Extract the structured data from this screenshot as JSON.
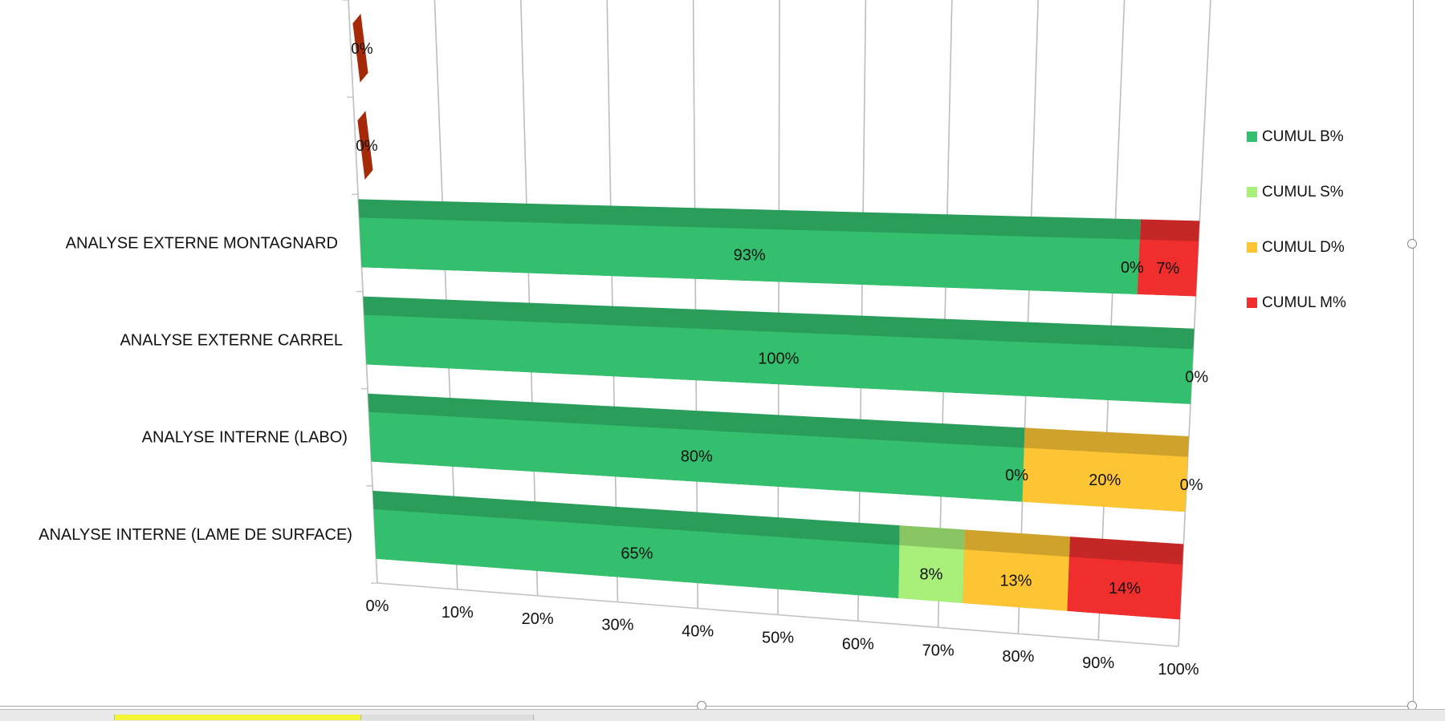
{
  "chart_data": {
    "type": "bar",
    "orientation": "horizontal",
    "stacked": "100%",
    "style": "3d",
    "categories": [
      "",
      "",
      "ANALYSE EXTERNE  MONTAGNARD",
      "ANALYSE EXTERNE   CARREL",
      "ANALYSE INTERNE (LABO)",
      "ANALYSE INTERNE (LAME DE SURFACE)"
    ],
    "series": [
      {
        "name": "CUMUL B%",
        "color": "#33bf6e",
        "values": [
          0,
          0,
          93,
          100,
          80,
          65
        ],
        "labels": [
          "",
          "",
          "93%",
          "100%",
          "80%",
          "65%"
        ]
      },
      {
        "name": "CUMUL S%",
        "color": "#a8f07a",
        "values": [
          0,
          0,
          0,
          0,
          0,
          8
        ],
        "labels": [
          "",
          "",
          "0%",
          "",
          "0%",
          "8%"
        ]
      },
      {
        "name": "CUMUL D%",
        "color": "#fdc534",
        "values": [
          0,
          0,
          0,
          0,
          20,
          13
        ],
        "labels": [
          "",
          "",
          "",
          "",
          "20%",
          "13%"
        ]
      },
      {
        "name": "CUMUL M%",
        "color": "#f02e2e",
        "values": [
          0,
          0,
          7,
          0,
          0,
          14
        ],
        "labels": [
          "0%",
          "0%",
          "7%",
          "0%",
          "0%",
          "14%"
        ]
      }
    ],
    "empty_marker_color": "#a52a0a",
    "x_ticks": [
      "0%",
      "10%",
      "20%",
      "30%",
      "40%",
      "50%",
      "60%",
      "70%",
      "80%",
      "90%",
      "100%"
    ],
    "xlim": [
      0,
      100
    ],
    "grid": true,
    "legend": "right"
  }
}
